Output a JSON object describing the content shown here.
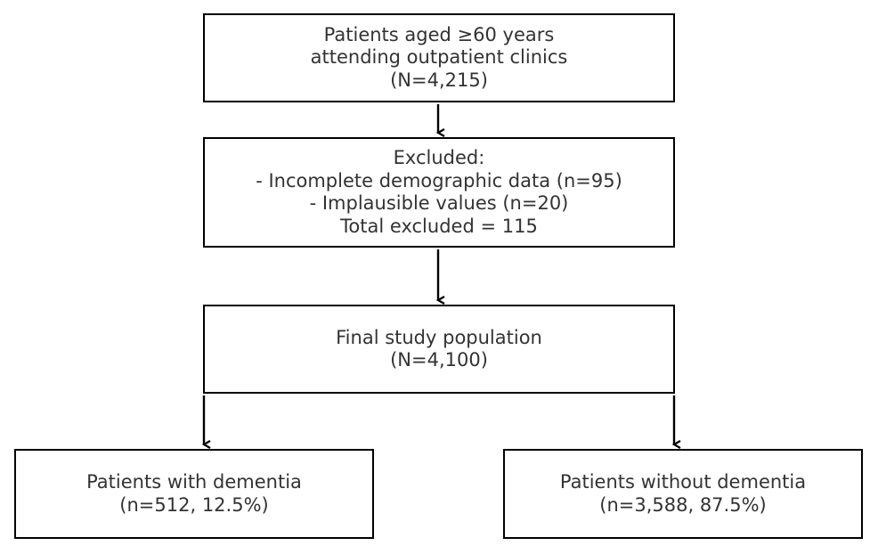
{
  "flowchart": {
    "screened": {
      "lines": [
        "Patients aged ≥60 years",
        "attending outpatient clinics",
        "(N=4,215)"
      ]
    },
    "excluded": {
      "lines": [
        "Excluded:",
        "- Incomplete demographic data (n=95)",
        "- Implausible values (n=20)",
        "Total excluded = 115"
      ]
    },
    "final": {
      "lines": [
        "Final study population",
        "(N=4,100)"
      ]
    },
    "dementia": {
      "lines": [
        "Patients with dementia",
        "(n=512, 12.5%)"
      ]
    },
    "no_dementia": {
      "lines": [
        "Patients without dementia",
        "(n=3,588, 87.5%)"
      ]
    }
  },
  "colors": {
    "border": "#000000",
    "text": "#333333",
    "arrow": "#000000"
  }
}
